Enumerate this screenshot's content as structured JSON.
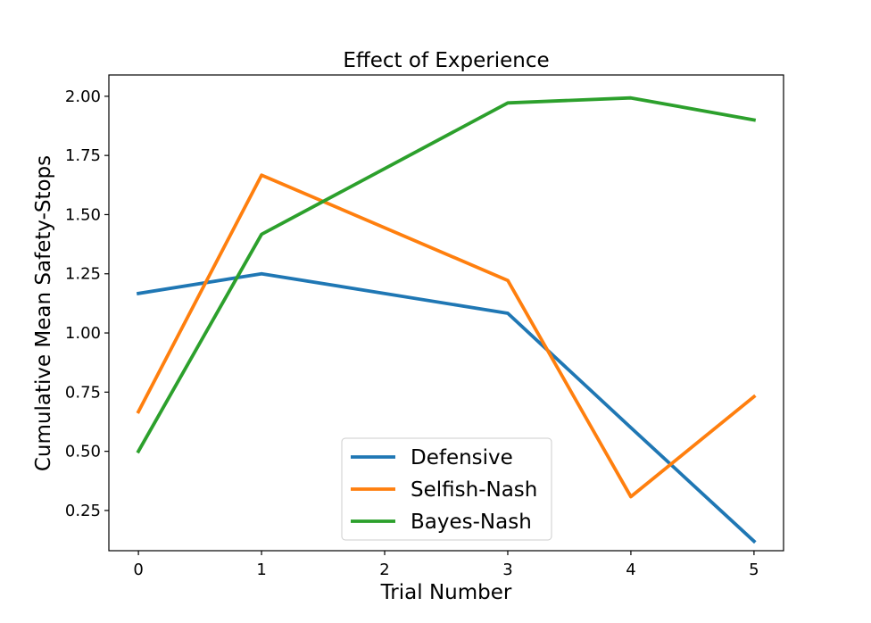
{
  "chart_data": {
    "type": "line",
    "title": "Effect of Experience",
    "xlabel": "Trial Number",
    "ylabel": "Cumulative Mean Safety-Stops",
    "xlim": [
      -0.24,
      5.24
    ],
    "ylim": [
      0.08,
      2.09
    ],
    "grid": false,
    "legend_location": "lower center",
    "x_ticks": [
      0,
      1,
      2,
      3,
      4,
      5
    ],
    "x_tick_labels": [
      "0",
      "1",
      "2",
      "3",
      "4",
      "5"
    ],
    "y_ticks": [
      0.25,
      0.5,
      0.75,
      1.0,
      1.25,
      1.5,
      1.75,
      2.0
    ],
    "y_tick_labels": [
      "0.25",
      "0.50",
      "0.75",
      "1.00",
      "1.25",
      "1.50",
      "1.75",
      "2.00"
    ],
    "x": [
      0,
      1,
      3,
      4,
      5
    ],
    "series": [
      {
        "name": "Defensive",
        "color": "#1f77b4",
        "values": [
          1.167,
          1.25,
          1.083,
          0.6,
          0.12
        ]
      },
      {
        "name": "Selfish-Nash",
        "color": "#ff7f0e",
        "values": [
          0.667,
          1.667,
          1.222,
          0.308,
          0.731
        ]
      },
      {
        "name": "Bayes-Nash",
        "color": "#2ca02c",
        "values": [
          0.5,
          1.417,
          1.972,
          1.993,
          1.9
        ]
      }
    ]
  }
}
